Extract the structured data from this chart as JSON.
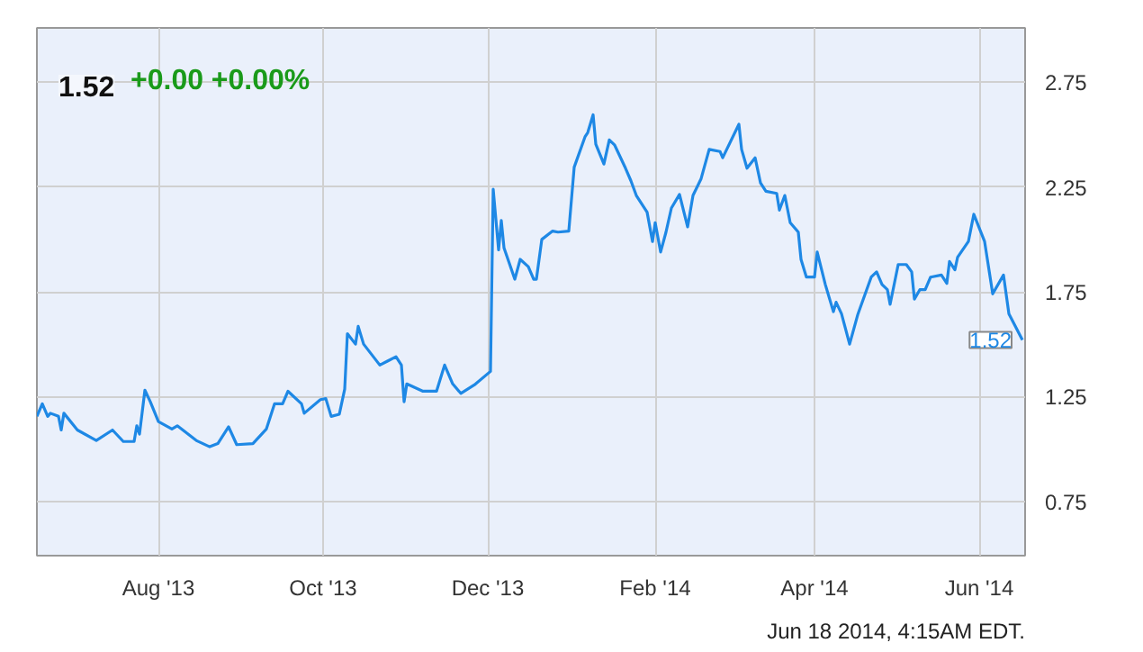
{
  "chart_data": {
    "type": "line",
    "title": "1.52",
    "subtitle": "+0.00  +0.00%",
    "annotations": [
      {
        "text": "1.52",
        "x": "2014-06-17",
        "y": 1.52
      },
      "Jun 18 2014, 4:15AM EDT."
    ],
    "xlim": [
      "2013-06-17",
      "2014-06-18"
    ],
    "ylim": [
      0.49,
      3.01
    ],
    "xticks": [
      {
        "value": "2013-08-01",
        "label": "Aug '13"
      },
      {
        "value": "2013-10-01",
        "label": "Oct '13"
      },
      {
        "value": "2013-12-01",
        "label": "Dec '13"
      },
      {
        "value": "2014-02-01",
        "label": "Feb '14"
      },
      {
        "value": "2014-04-01",
        "label": "Apr '14"
      },
      {
        "value": "2014-06-01",
        "label": "Jun '14"
      }
    ],
    "yticks": [
      0.75,
      1.25,
      1.75,
      2.25,
      2.75
    ],
    "grid": true,
    "marker": "none",
    "line_style": "solid",
    "x": [
      "2013-06-17",
      "2013-06-19",
      "2013-06-21",
      "2013-06-22",
      "2013-06-25",
      "2013-06-26",
      "2013-06-27",
      "2013-07-02",
      "2013-07-09",
      "2013-07-15",
      "2013-07-19",
      "2013-07-23",
      "2013-07-24",
      "2013-07-25",
      "2013-07-27",
      "2013-07-29",
      "2013-08-01",
      "2013-08-06",
      "2013-08-08",
      "2013-08-15",
      "2013-08-20",
      "2013-08-23",
      "2013-08-27",
      "2013-08-30",
      "2013-09-05",
      "2013-09-10",
      "2013-09-13",
      "2013-09-16",
      "2013-09-18",
      "2013-09-23",
      "2013-09-24",
      "2013-09-30",
      "2013-10-02",
      "2013-10-04",
      "2013-10-07",
      "2013-10-09",
      "2013-10-10",
      "2013-10-13",
      "2013-10-14",
      "2013-10-16",
      "2013-10-22",
      "2013-10-25",
      "2013-10-28",
      "2013-10-30",
      "2013-10-31",
      "2013-11-01",
      "2013-11-07",
      "2013-11-12",
      "2013-11-15",
      "2013-11-18",
      "2013-11-21",
      "2013-11-26",
      "2013-12-02",
      "2013-12-03",
      "2013-12-05",
      "2013-12-06",
      "2013-12-07",
      "2013-12-11",
      "2013-12-13",
      "2013-12-16",
      "2013-12-18",
      "2013-12-19",
      "2013-12-21",
      "2013-12-25",
      "2013-12-27",
      "2013-12-31",
      "2014-01-02",
      "2014-01-06",
      "2014-01-07",
      "2014-01-09",
      "2014-01-10",
      "2014-01-13",
      "2014-01-15",
      "2014-01-17",
      "2014-01-21",
      "2014-01-23",
      "2014-01-25",
      "2014-01-29",
      "2014-01-31",
      "2014-02-01",
      "2014-02-03",
      "2014-02-05",
      "2014-02-07",
      "2014-02-10",
      "2014-02-13",
      "2014-02-15",
      "2014-02-18",
      "2014-02-21",
      "2014-02-25",
      "2014-02-26",
      "2014-03-04",
      "2014-03-05",
      "2014-03-07",
      "2014-03-10",
      "2014-03-12",
      "2014-03-14",
      "2014-03-18",
      "2014-03-19",
      "2014-03-21",
      "2014-03-23",
      "2014-03-26",
      "2014-03-27",
      "2014-03-29",
      "2014-04-01",
      "2014-04-02",
      "2014-04-05",
      "2014-04-08",
      "2014-04-09",
      "2014-04-11",
      "2014-04-14",
      "2014-04-17",
      "2014-04-22",
      "2014-04-24",
      "2014-04-26",
      "2014-04-28",
      "2014-04-29",
      "2014-05-02",
      "2014-05-05",
      "2014-05-07",
      "2014-05-08",
      "2014-05-10",
      "2014-05-12",
      "2014-05-14",
      "2014-05-18",
      "2014-05-20",
      "2014-05-21",
      "2014-05-23",
      "2014-05-24",
      "2014-05-28",
      "2014-05-30",
      "2014-06-03",
      "2014-06-06",
      "2014-06-10",
      "2014-06-12",
      "2014-06-17"
    ],
    "series": [
      {
        "color": "#1e88e5",
        "values": [
          1.155,
          1.215,
          1.155,
          1.17,
          1.155,
          1.09,
          1.17,
          1.09,
          1.04,
          1.09,
          1.035,
          1.035,
          1.11,
          1.07,
          1.28,
          1.225,
          1.13,
          1.095,
          1.11,
          1.04,
          1.01,
          1.025,
          1.105,
          1.02,
          1.025,
          1.095,
          1.215,
          1.215,
          1.275,
          1.215,
          1.17,
          1.235,
          1.24,
          1.155,
          1.165,
          1.285,
          1.55,
          1.5,
          1.585,
          1.5,
          1.4,
          1.42,
          1.44,
          1.4,
          1.225,
          1.31,
          1.275,
          1.275,
          1.4,
          1.31,
          1.265,
          1.305,
          1.37,
          2.24,
          1.95,
          2.09,
          1.96,
          1.81,
          1.905,
          1.87,
          1.81,
          1.81,
          2.0,
          2.04,
          2.035,
          2.04,
          2.345,
          2.49,
          2.51,
          2.595,
          2.455,
          2.36,
          2.475,
          2.45,
          2.34,
          2.28,
          2.21,
          2.13,
          1.99,
          2.08,
          1.94,
          2.035,
          2.15,
          2.215,
          2.06,
          2.21,
          2.29,
          2.43,
          2.42,
          2.39,
          2.55,
          2.43,
          2.34,
          2.39,
          2.27,
          2.23,
          2.22,
          2.14,
          2.21,
          2.08,
          2.035,
          1.905,
          1.82,
          1.82,
          1.94,
          1.785,
          1.655,
          1.7,
          1.645,
          1.5,
          1.64,
          1.82,
          1.845,
          1.785,
          1.76,
          1.69,
          1.88,
          1.88,
          1.845,
          1.715,
          1.76,
          1.76,
          1.82,
          1.83,
          1.79,
          1.895,
          1.855,
          1.915,
          1.99,
          2.12,
          1.99,
          1.74,
          1.83,
          1.645,
          1.52
        ]
      }
    ]
  }
}
